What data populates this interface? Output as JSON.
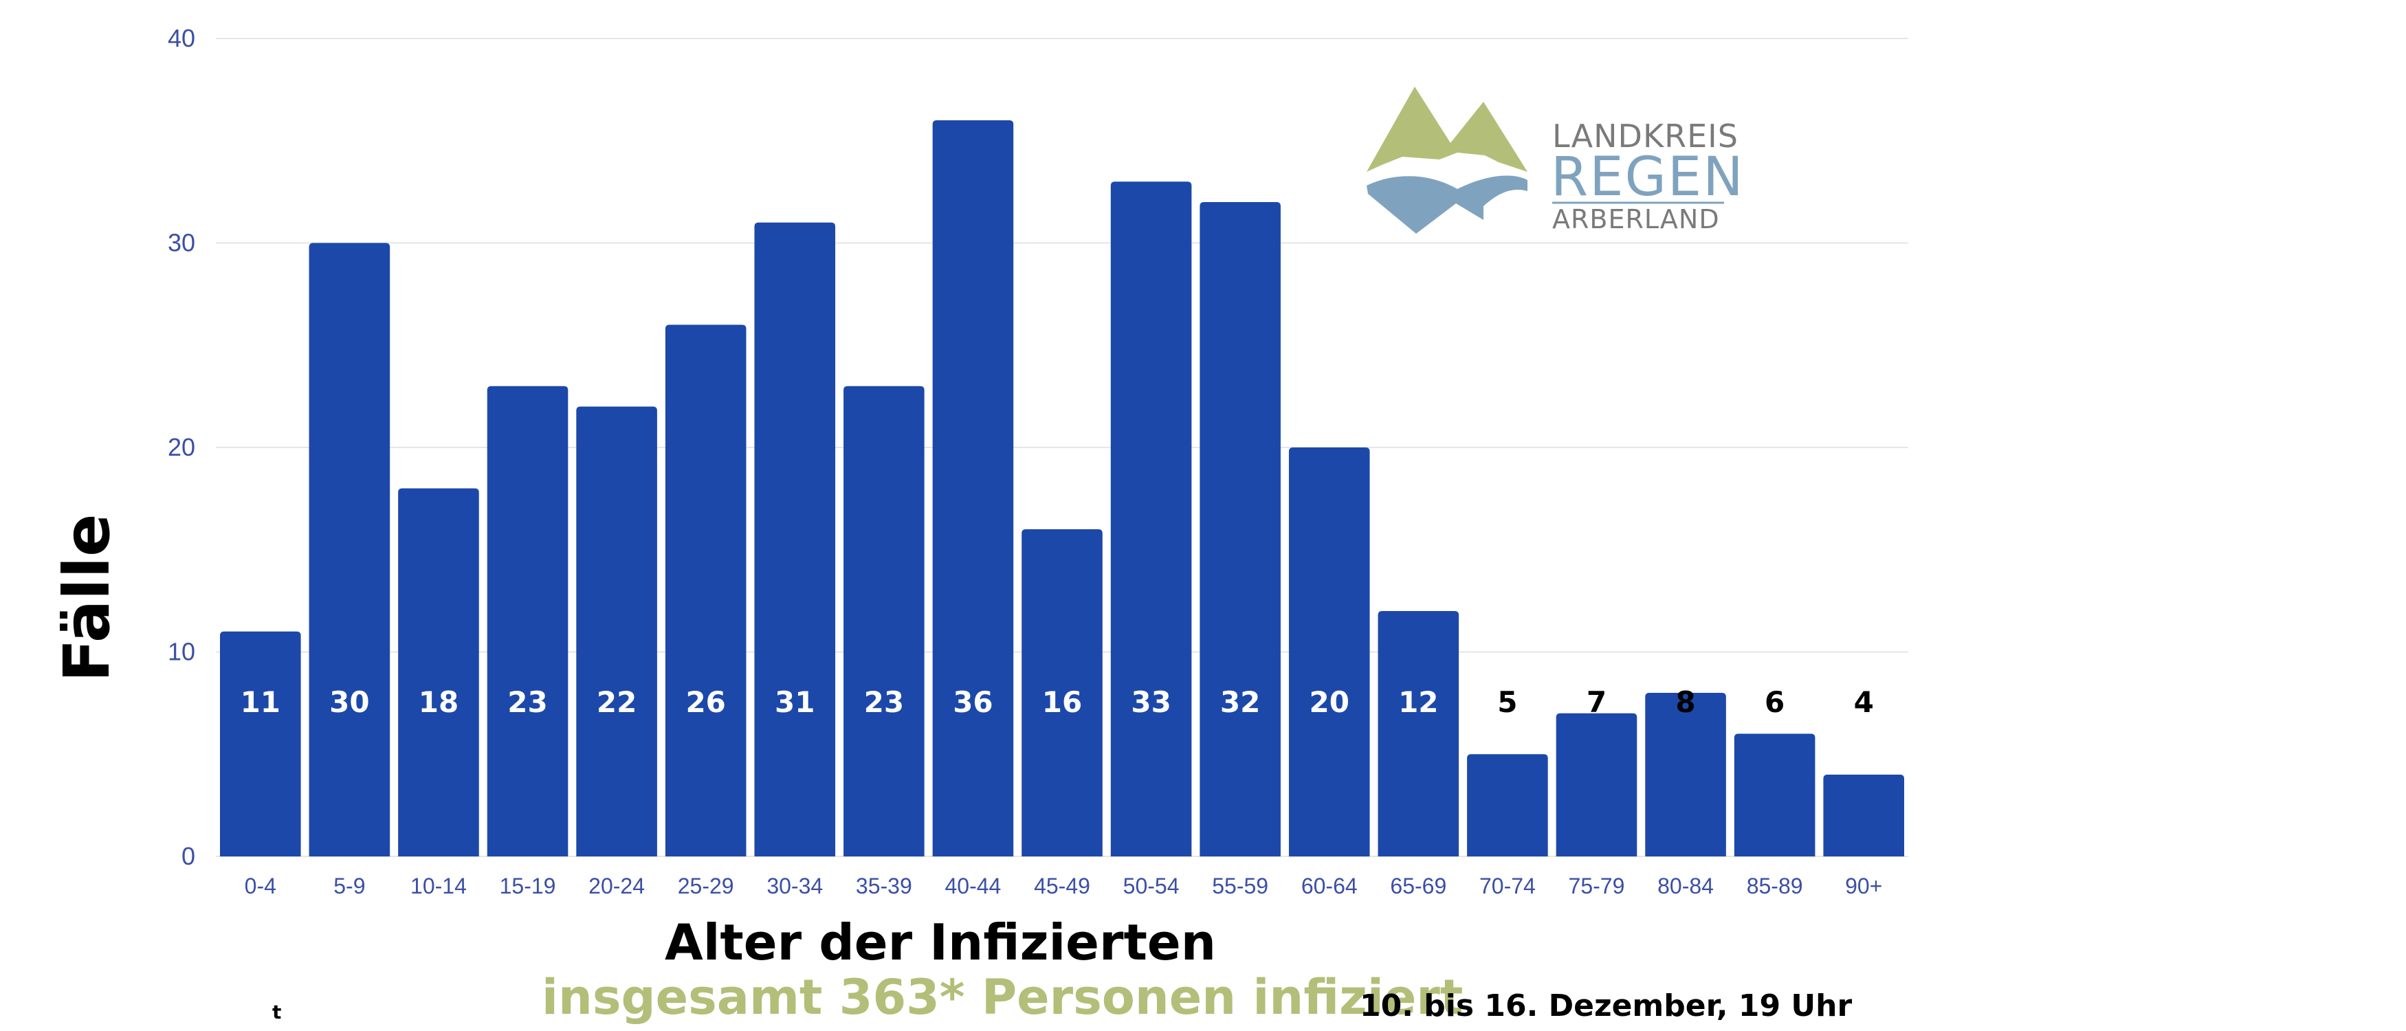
{
  "chart_data": {
    "type": "bar",
    "categories": [
      "0-4",
      "5-9",
      "10-14",
      "15-19",
      "20-24",
      "25-29",
      "30-34",
      "35-39",
      "40-44",
      "45-49",
      "50-54",
      "55-59",
      "60-64",
      "65-69",
      "70-74",
      "75-79",
      "80-84",
      "85-89",
      "90+"
    ],
    "values": [
      11,
      30,
      18,
      23,
      22,
      26,
      31,
      23,
      36,
      16,
      33,
      32,
      20,
      12,
      5,
      7,
      8,
      6,
      4
    ],
    "xlabel": "Alter der Infizierten",
    "ylabel": "Fälle",
    "ylim": [
      0,
      40
    ],
    "yticks": [
      "0",
      "10",
      "20",
      "30",
      "40"
    ],
    "grid": true,
    "bar_color": "#1c48aa",
    "label_color_inside": "#ffffff",
    "label_color_outside": "#000000"
  },
  "footer": {
    "summary": "insgesamt 363* Personen infiziert",
    "period": "10. bis 16. Dezember, 19 Uhr",
    "stray": "t"
  },
  "logo": {
    "line1": "LANDKREIS",
    "line2": "REGEN",
    "line3": "ARBERLAND",
    "color_mountain": "#b3be78",
    "color_water": "#7fa3bf",
    "color_text_dark": "#7a7a7a"
  }
}
